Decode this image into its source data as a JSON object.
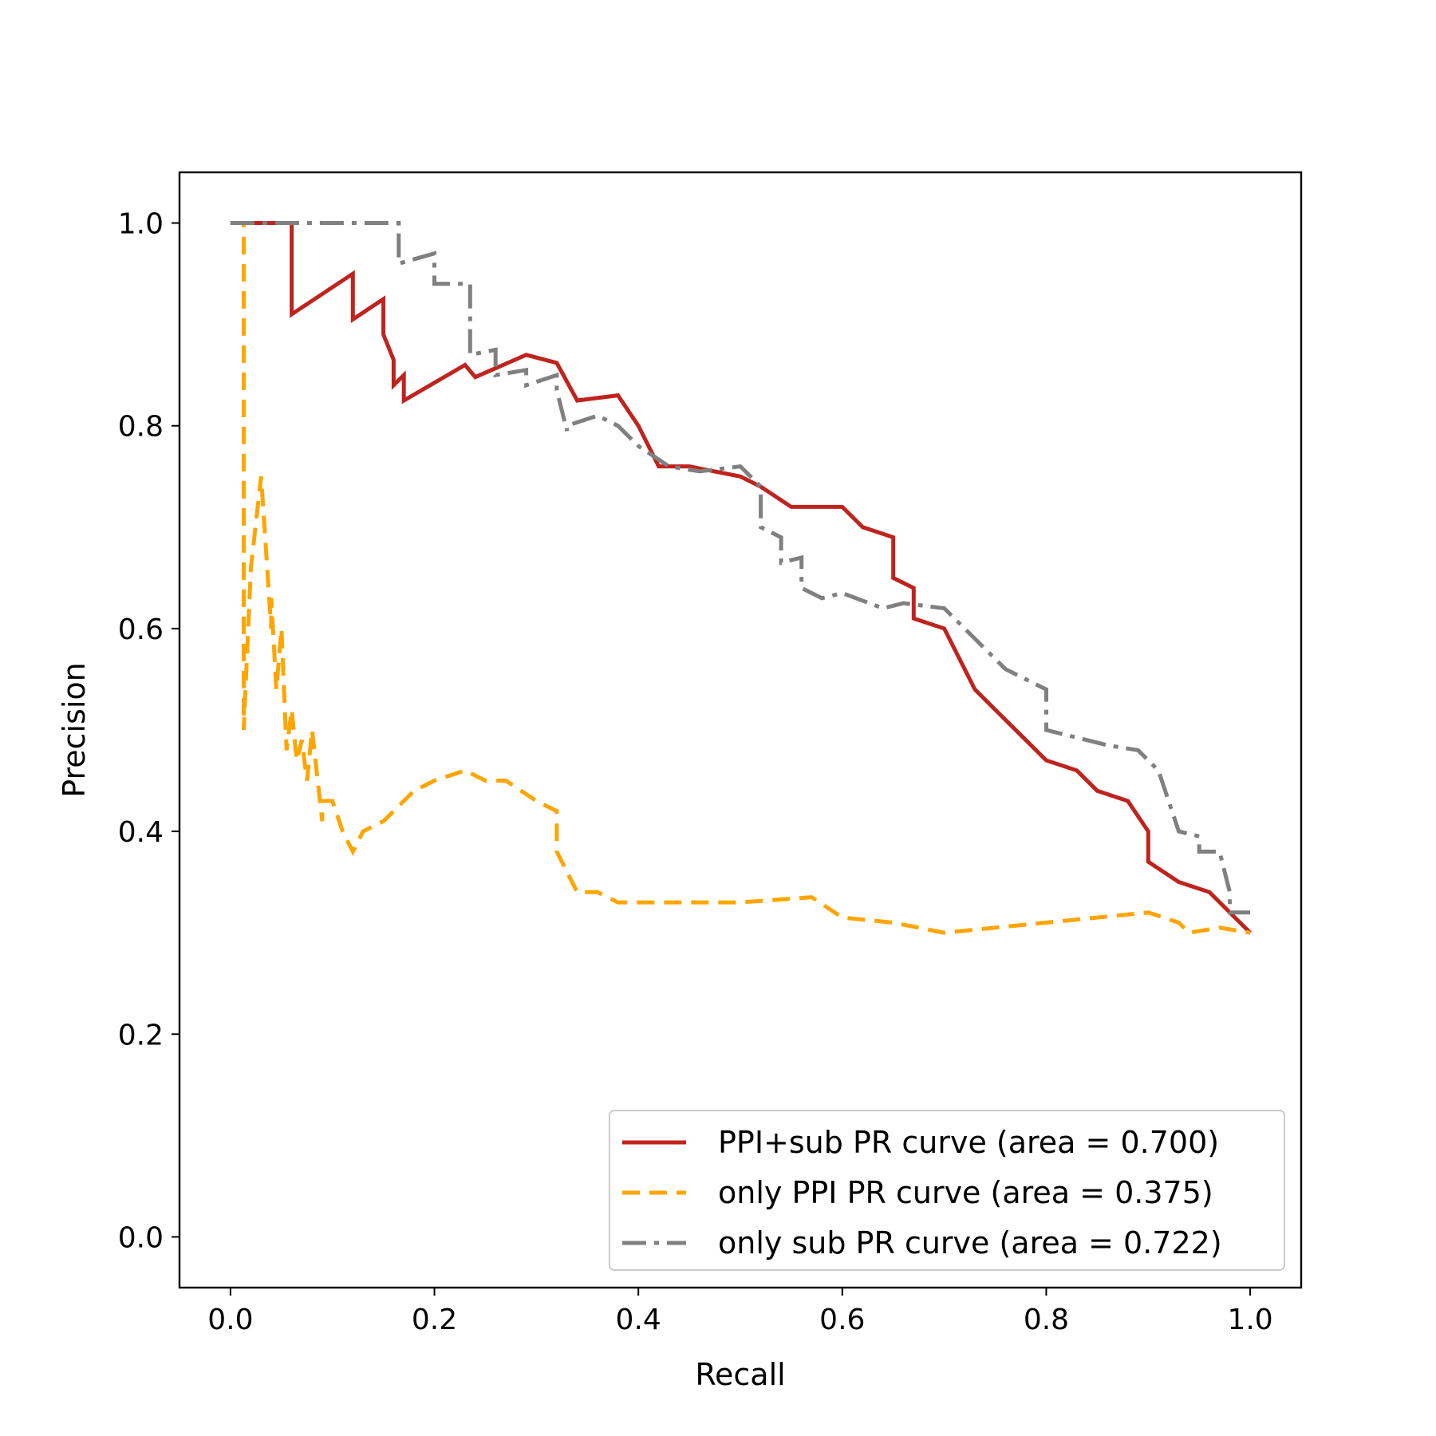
{
  "chart_data": {
    "type": "line",
    "title": "",
    "xlabel": "Recall",
    "ylabel": "Precision",
    "xlim": [
      -0.05,
      1.05
    ],
    "ylim": [
      -0.05,
      1.05
    ],
    "xticks": [
      "0.0",
      "0.2",
      "0.4",
      "0.6",
      "0.8",
      "1.0"
    ],
    "yticks": [
      "0.0",
      "0.2",
      "0.4",
      "0.6",
      "0.8",
      "1.0"
    ],
    "grid": false,
    "legend_position": "lower-right",
    "series": [
      {
        "name": "PPI+sub PR curve (area = 0.700)",
        "color": "#c0231d",
        "style": "solid",
        "x": [
          0.0,
          0.06,
          0.06,
          0.12,
          0.12,
          0.15,
          0.15,
          0.16,
          0.16,
          0.17,
          0.17,
          0.23,
          0.24,
          0.29,
          0.32,
          0.34,
          0.38,
          0.4,
          0.42,
          0.45,
          0.5,
          0.52,
          0.55,
          0.6,
          0.62,
          0.65,
          0.65,
          0.67,
          0.67,
          0.7,
          0.72,
          0.73,
          0.75,
          0.78,
          0.8,
          0.83,
          0.85,
          0.88,
          0.9,
          0.9,
          0.93,
          0.96,
          1.0
        ],
        "y": [
          1.0,
          1.0,
          0.91,
          0.95,
          0.905,
          0.925,
          0.89,
          0.865,
          0.84,
          0.85,
          0.825,
          0.86,
          0.848,
          0.87,
          0.862,
          0.825,
          0.83,
          0.8,
          0.76,
          0.76,
          0.75,
          0.74,
          0.72,
          0.72,
          0.7,
          0.69,
          0.65,
          0.64,
          0.61,
          0.6,
          0.56,
          0.54,
          0.52,
          0.49,
          0.47,
          0.46,
          0.44,
          0.43,
          0.4,
          0.37,
          0.35,
          0.34,
          0.3
        ]
      },
      {
        "name": "only PPI PR curve (area = 0.375)",
        "color": "#ffa500",
        "style": "dashed",
        "x": [
          0.0,
          0.013,
          0.013,
          0.02,
          0.03,
          0.04,
          0.04,
          0.045,
          0.05,
          0.055,
          0.06,
          0.065,
          0.07,
          0.075,
          0.08,
          0.09,
          0.09,
          0.1,
          0.11,
          0.12,
          0.13,
          0.15,
          0.18,
          0.2,
          0.23,
          0.25,
          0.27,
          0.3,
          0.32,
          0.32,
          0.34,
          0.36,
          0.38,
          0.42,
          0.5,
          0.57,
          0.6,
          0.65,
          0.7,
          0.75,
          0.8,
          0.85,
          0.9,
          0.93,
          0.94,
          0.97,
          1.0
        ],
        "y": [
          1.0,
          1.0,
          0.5,
          0.66,
          0.75,
          0.6,
          0.63,
          0.54,
          0.6,
          0.48,
          0.52,
          0.47,
          0.49,
          0.45,
          0.5,
          0.41,
          0.43,
          0.43,
          0.4,
          0.38,
          0.4,
          0.41,
          0.44,
          0.45,
          0.46,
          0.45,
          0.45,
          0.43,
          0.42,
          0.38,
          0.34,
          0.34,
          0.33,
          0.33,
          0.33,
          0.335,
          0.315,
          0.31,
          0.3,
          0.305,
          0.31,
          0.315,
          0.32,
          0.31,
          0.3,
          0.305,
          0.3
        ]
      },
      {
        "name": "only sub PR curve (area = 0.722)",
        "color": "#808080",
        "style": "dashdot",
        "x": [
          0.0,
          0.165,
          0.165,
          0.2,
          0.2,
          0.235,
          0.235,
          0.26,
          0.26,
          0.29,
          0.29,
          0.32,
          0.32,
          0.33,
          0.33,
          0.36,
          0.38,
          0.4,
          0.43,
          0.46,
          0.5,
          0.52,
          0.52,
          0.54,
          0.54,
          0.56,
          0.56,
          0.58,
          0.6,
          0.64,
          0.66,
          0.7,
          0.72,
          0.73,
          0.76,
          0.78,
          0.8,
          0.8,
          0.82,
          0.84,
          0.86,
          0.89,
          0.91,
          0.92,
          0.93,
          0.95,
          0.95,
          0.97,
          0.98,
          0.98,
          1.0
        ],
        "y": [
          1.0,
          1.0,
          0.96,
          0.97,
          0.94,
          0.94,
          0.87,
          0.875,
          0.85,
          0.855,
          0.84,
          0.85,
          0.835,
          0.795,
          0.8,
          0.81,
          0.8,
          0.78,
          0.76,
          0.755,
          0.76,
          0.74,
          0.7,
          0.69,
          0.665,
          0.67,
          0.64,
          0.63,
          0.635,
          0.62,
          0.625,
          0.62,
          0.6,
          0.59,
          0.56,
          0.55,
          0.54,
          0.5,
          0.495,
          0.49,
          0.485,
          0.48,
          0.46,
          0.43,
          0.4,
          0.395,
          0.38,
          0.38,
          0.34,
          0.32,
          0.32
        ]
      }
    ]
  }
}
